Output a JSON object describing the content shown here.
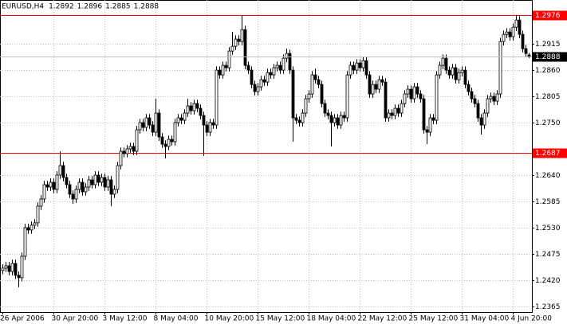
{
  "chart_data": {
    "type": "candlestick",
    "title": "EURUSD,H4",
    "categories": [
      "26 Apr 2006",
      null,
      null,
      null,
      null,
      null,
      null,
      null,
      null,
      null,
      null,
      null,
      null,
      null,
      null,
      null,
      "30 Apr 20:00",
      null,
      null,
      null,
      null,
      null,
      null,
      null,
      null,
      null,
      null,
      null,
      null,
      null,
      null,
      null,
      "3 May 12:00",
      null,
      null,
      null,
      null,
      null,
      null,
      null,
      null,
      null,
      null,
      null,
      null,
      null,
      null,
      null,
      "8 May 04:00",
      null,
      null,
      null,
      null,
      null,
      null,
      null,
      null,
      null,
      null,
      null,
      null,
      null,
      null,
      null,
      "10 May 20:00",
      null,
      null,
      null,
      null,
      null,
      null,
      null,
      null,
      null,
      null,
      null,
      null,
      null,
      null,
      null,
      "15 May 12:00",
      null,
      null,
      null,
      null,
      null,
      null,
      null,
      null,
      null,
      null,
      null,
      null,
      null,
      null,
      null,
      "18 May 04:00",
      null,
      null,
      null,
      null,
      null,
      null,
      null,
      null,
      null,
      null,
      null,
      null,
      null,
      null,
      null,
      "22 May 12:00",
      null,
      null,
      null,
      null,
      null,
      null,
      null,
      null,
      null,
      null,
      null,
      null,
      null,
      null,
      null,
      "25 May 12:00",
      null,
      null,
      null,
      null,
      null,
      null,
      null,
      null,
      null,
      null,
      null,
      null,
      null,
      null,
      null,
      "31 May 04:00",
      null,
      null,
      null,
      null,
      null,
      null,
      null,
      null,
      null,
      null,
      null,
      null,
      null,
      null,
      null,
      "4 Jun 20:00",
      null,
      null,
      null,
      null,
      null
    ],
    "open": [
      1.244,
      1.2445,
      1.245,
      1.2438,
      1.2455,
      1.243,
      1.2425,
      1.247,
      1.253,
      1.2525,
      1.2535,
      1.254,
      1.2575,
      1.259,
      1.262,
      1.2615,
      1.2625,
      1.261,
      1.264,
      1.266,
      1.2635,
      1.262,
      1.26,
      1.259,
      1.261,
      1.2625,
      1.2605,
      1.2615,
      1.263,
      1.262,
      1.264,
      1.2625,
      1.2635,
      1.2615,
      1.263,
      1.26,
      1.261,
      1.266,
      1.269,
      1.2685,
      1.2695,
      1.27,
      1.269,
      1.2735,
      1.275,
      1.274,
      1.276,
      1.2745,
      1.273,
      1.277,
      1.272,
      1.2705,
      1.27,
      1.2715,
      1.271,
      1.275,
      1.276,
      1.2755,
      1.277,
      1.2785,
      1.2775,
      1.279,
      1.278,
      1.2765,
      1.2745,
      1.273,
      1.275,
      1.2745,
      1.286,
      1.285,
      1.287,
      1.2865,
      1.29,
      1.291,
      1.2925,
      1.292,
      1.2945,
      1.287,
      1.286,
      1.283,
      1.2815,
      1.2825,
      1.284,
      1.2835,
      1.2855,
      1.285,
      1.2865,
      1.287,
      1.286,
      1.2885,
      1.2895,
      1.286,
      1.276,
      1.2755,
      1.275,
      1.277,
      1.28,
      1.281,
      1.285,
      1.284,
      1.283,
      1.279,
      1.277,
      1.2765,
      1.275,
      1.276,
      1.2745,
      1.2765,
      1.276,
      1.285,
      1.287,
      1.286,
      1.2875,
      1.2865,
      1.288,
      1.285,
      1.281,
      1.283,
      1.282,
      1.284,
      1.2835,
      1.276,
      1.277,
      1.2765,
      1.278,
      1.277,
      1.279,
      1.281,
      1.282,
      1.28,
      1.2825,
      1.281,
      1.28,
      1.2735,
      1.273,
      1.276,
      1.2755,
      1.285,
      1.287,
      1.2885,
      1.286,
      1.285,
      1.2865,
      1.284,
      1.2855,
      1.286,
      1.283,
      1.2815,
      1.28,
      1.279,
      1.276,
      1.2745,
      1.277,
      1.28,
      1.2805,
      1.2795,
      1.281,
      1.292,
      1.2935,
      1.294,
      1.293,
      1.295,
      1.2965,
      1.2935,
      1.2905,
      1.2892
    ],
    "high": [
      1.2453,
      1.2458,
      1.2458,
      1.2463,
      1.2463,
      1.2438,
      1.2478,
      1.2538,
      1.2538,
      1.2543,
      1.2548,
      1.2583,
      1.2598,
      1.2628,
      1.2628,
      1.2633,
      1.2633,
      1.2648,
      1.269,
      1.2668,
      1.2643,
      1.2628,
      1.2608,
      1.2618,
      1.2633,
      1.2633,
      1.2623,
      1.2638,
      1.2638,
      1.2648,
      1.2648,
      1.2643,
      1.2643,
      1.2638,
      1.2638,
      1.2618,
      1.2668,
      1.2698,
      1.2698,
      1.2703,
      1.2708,
      1.2708,
      1.2743,
      1.2758,
      1.2758,
      1.2768,
      1.2768,
      1.2753,
      1.28,
      1.2778,
      1.2728,
      1.2713,
      1.2723,
      1.2723,
      1.2758,
      1.2768,
      1.2768,
      1.2778,
      1.28,
      1.2793,
      1.2798,
      1.2798,
      1.2788,
      1.2773,
      1.2753,
      1.2758,
      1.2758,
      1.2868,
      1.2868,
      1.2878,
      1.2878,
      1.2908,
      1.294,
      1.2933,
      1.2933,
      1.2975,
      1.2953,
      1.2878,
      1.2868,
      1.2838,
      1.2833,
      1.2848,
      1.2848,
      1.2863,
      1.2863,
      1.2873,
      1.2878,
      1.2878,
      1.2893,
      1.2905,
      1.2903,
      1.2868,
      1.2768,
      1.2763,
      1.2778,
      1.2808,
      1.2818,
      1.2858,
      1.2863,
      1.2848,
      1.2838,
      1.2798,
      1.2778,
      1.2773,
      1.2768,
      1.2768,
      1.2773,
      1.2773,
      1.2858,
      1.2878,
      1.2878,
      1.2883,
      1.2883,
      1.2888,
      1.2888,
      1.2858,
      1.2838,
      1.2838,
      1.2848,
      1.2848,
      1.2843,
      1.2778,
      1.2778,
      1.2788,
      1.2788,
      1.2798,
      1.2818,
      1.2828,
      1.2828,
      1.2833,
      1.2833,
      1.2818,
      1.2808,
      1.2743,
      1.2768,
      1.2768,
      1.2858,
      1.2878,
      1.2893,
      1.2893,
      1.2868,
      1.2873,
      1.2873,
      1.2863,
      1.2868,
      1.2868,
      1.2838,
      1.2823,
      1.2808,
      1.2798,
      1.2768,
      1.2778,
      1.2808,
      1.2813,
      1.2813,
      1.2818,
      1.2928,
      1.2943,
      1.2948,
      1.2948,
      1.2958,
      1.2976,
      1.2973,
      1.2943,
      1.2913,
      1.2896
    ],
    "low": [
      1.2432,
      1.2437,
      1.243,
      1.243,
      1.2422,
      1.2405,
      1.2417,
      1.2462,
      1.2517,
      1.2517,
      1.2527,
      1.2532,
      1.2567,
      1.2582,
      1.2607,
      1.2607,
      1.2602,
      1.2602,
      1.2632,
      1.2627,
      1.2612,
      1.2592,
      1.258,
      1.2582,
      1.2602,
      1.2597,
      1.2597,
      1.2607,
      1.2612,
      1.2612,
      1.2617,
      1.2617,
      1.2607,
      1.2607,
      1.2575,
      1.2592,
      1.2602,
      1.2652,
      1.2677,
      1.2677,
      1.2687,
      1.2682,
      1.2682,
      1.2727,
      1.2732,
      1.2732,
      1.2737,
      1.2722,
      1.2722,
      1.2712,
      1.2697,
      1.2675,
      1.2692,
      1.2702,
      1.2702,
      1.2742,
      1.2747,
      1.2747,
      1.2762,
      1.2767,
      1.2767,
      1.2772,
      1.2757,
      1.268,
      1.2722,
      1.2722,
      1.2737,
      1.2737,
      1.2842,
      1.2842,
      1.2857,
      1.2857,
      1.2892,
      1.2902,
      1.2912,
      1.2912,
      1.2862,
      1.2852,
      1.2822,
      1.2807,
      1.2807,
      1.2817,
      1.2827,
      1.2827,
      1.2842,
      1.2842,
      1.2857,
      1.2852,
      1.2852,
      1.2877,
      1.2852,
      1.271,
      1.2747,
      1.2742,
      1.2742,
      1.2762,
      1.2792,
      1.2802,
      1.2832,
      1.2822,
      1.2782,
      1.2762,
      1.2757,
      1.27,
      1.2742,
      1.2737,
      1.2737,
      1.2752,
      1.2752,
      1.2842,
      1.2852,
      1.2852,
      1.2857,
      1.2857,
      1.2842,
      1.2802,
      1.2802,
      1.2812,
      1.2812,
      1.2827,
      1.2752,
      1.2752,
      1.2757,
      1.2757,
      1.2762,
      1.2762,
      1.2782,
      1.2802,
      1.2792,
      1.2792,
      1.2802,
      1.2792,
      1.2727,
      1.2705,
      1.2722,
      1.2747,
      1.2747,
      1.2842,
      1.2862,
      1.2852,
      1.2842,
      1.2842,
      1.2832,
      1.2832,
      1.2847,
      1.2822,
      1.2807,
      1.2792,
      1.2782,
      1.2752,
      1.2725,
      1.2737,
      1.2762,
      1.2792,
      1.2787,
      1.2787,
      1.2802,
      1.2912,
      1.2927,
      1.2922,
      1.2922,
      1.2942,
      1.2927,
      1.2897,
      1.2887,
      1.2885
    ],
    "close": [
      1.2445,
      1.245,
      1.2438,
      1.2455,
      1.243,
      1.2425,
      1.247,
      1.253,
      1.2525,
      1.2535,
      1.254,
      1.2575,
      1.259,
      1.262,
      1.2615,
      1.2625,
      1.261,
      1.264,
      1.266,
      1.2635,
      1.262,
      1.26,
      1.259,
      1.261,
      1.2625,
      1.2605,
      1.2615,
      1.263,
      1.262,
      1.264,
      1.2625,
      1.2635,
      1.2615,
      1.263,
      1.26,
      1.261,
      1.266,
      1.269,
      1.2685,
      1.2695,
      1.27,
      1.269,
      1.2735,
      1.275,
      1.274,
      1.276,
      1.2745,
      1.273,
      1.277,
      1.272,
      1.2705,
      1.27,
      1.2715,
      1.271,
      1.275,
      1.276,
      1.2755,
      1.277,
      1.2785,
      1.2775,
      1.279,
      1.278,
      1.2765,
      1.2745,
      1.273,
      1.275,
      1.2745,
      1.286,
      1.285,
      1.287,
      1.2865,
      1.29,
      1.291,
      1.2925,
      1.292,
      1.2945,
      1.287,
      1.286,
      1.283,
      1.2815,
      1.2825,
      1.284,
      1.2835,
      1.2855,
      1.285,
      1.2865,
      1.287,
      1.286,
      1.2885,
      1.2895,
      1.286,
      1.276,
      1.2755,
      1.275,
      1.277,
      1.28,
      1.281,
      1.285,
      1.284,
      1.283,
      1.279,
      1.277,
      1.2765,
      1.275,
      1.276,
      1.2745,
      1.2765,
      1.276,
      1.285,
      1.287,
      1.286,
      1.2875,
      1.2865,
      1.288,
      1.285,
      1.281,
      1.283,
      1.282,
      1.284,
      1.2835,
      1.276,
      1.277,
      1.2765,
      1.278,
      1.277,
      1.279,
      1.281,
      1.282,
      1.28,
      1.2825,
      1.281,
      1.28,
      1.2735,
      1.273,
      1.276,
      1.2755,
      1.285,
      1.287,
      1.2885,
      1.286,
      1.285,
      1.2865,
      1.284,
      1.2855,
      1.286,
      1.283,
      1.2815,
      1.28,
      1.279,
      1.276,
      1.2745,
      1.277,
      1.28,
      1.2805,
      1.2795,
      1.281,
      1.292,
      1.2935,
      1.294,
      1.293,
      1.295,
      1.2965,
      1.2935,
      1.2905,
      1.2895,
      1.2888
    ],
    "ylim": [
      1.2353,
      1.3007
    ],
    "yticks": [
      1.2915,
      {
        "value": 1.286,
        "label": "1.2860"
      },
      1.2805,
      {
        "value": 1.275,
        "label": "1.2750"
      },
      {
        "value": 1.264,
        "label": "1.2640"
      },
      1.2585,
      {
        "value": 1.253,
        "label": "1.2530"
      },
      1.2475,
      {
        "value": 1.242,
        "label": "1.2420"
      },
      1.2365
    ],
    "hlines": [
      1.2976,
      1.2687
    ],
    "hline_color": "#ff0000",
    "bid_color": "#c0c0c0",
    "bull_color": "#ffffff",
    "bear_color": "#000000",
    "grid": true
  }
}
